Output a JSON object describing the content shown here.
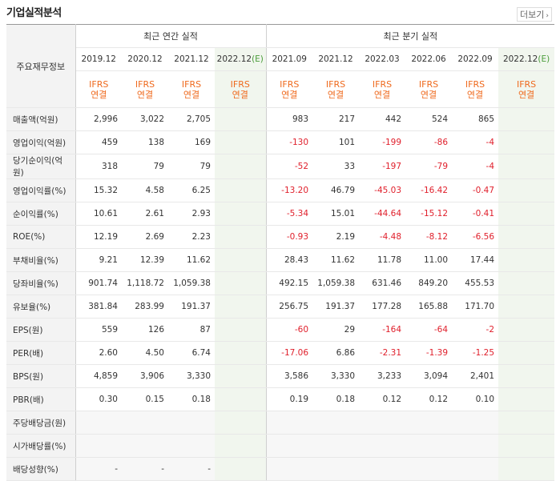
{
  "title": "기업실적분석",
  "more_label": "더보기",
  "header": {
    "row_label": "주요재무정보",
    "annual_group": "최근 연간 실적",
    "quarter_group": "최근 분기 실적",
    "annual_periods": [
      "2019.12",
      "2020.12",
      "2021.12",
      "2022.12(E)"
    ],
    "quarter_periods": [
      "2021.09",
      "2021.12",
      "2022.03",
      "2022.06",
      "2022.09",
      "2022.12(E)"
    ],
    "ifrs_top": "IFRS",
    "ifrs_bottom": "연결"
  },
  "rows": [
    {
      "label": "매출액(억원)",
      "values": [
        "2,996",
        "3,022",
        "2,705",
        "",
        "983",
        "217",
        "442",
        "524",
        "865",
        ""
      ]
    },
    {
      "label": "영업이익(억원)",
      "values": [
        "459",
        "138",
        "169",
        "",
        "-130",
        "101",
        "-199",
        "-86",
        "-4",
        ""
      ]
    },
    {
      "label": "당기순이익(억원)",
      "values": [
        "318",
        "79",
        "79",
        "",
        "-52",
        "33",
        "-197",
        "-79",
        "-4",
        ""
      ]
    },
    {
      "label": "영업이익률(%)",
      "values": [
        "15.32",
        "4.58",
        "6.25",
        "",
        "-13.20",
        "46.79",
        "-45.03",
        "-16.42",
        "-0.47",
        ""
      ]
    },
    {
      "label": "순이익률(%)",
      "values": [
        "10.61",
        "2.61",
        "2.93",
        "",
        "-5.34",
        "15.01",
        "-44.64",
        "-15.12",
        "-0.41",
        ""
      ]
    },
    {
      "label": "ROE(%)",
      "values": [
        "12.19",
        "2.69",
        "2.23",
        "",
        "-0.93",
        "2.19",
        "-4.48",
        "-8.12",
        "-6.56",
        ""
      ]
    },
    {
      "label": "부채비율(%)",
      "values": [
        "9.21",
        "12.39",
        "11.62",
        "",
        "28.43",
        "11.62",
        "11.78",
        "11.00",
        "17.44",
        ""
      ]
    },
    {
      "label": "당좌비율(%)",
      "values": [
        "901.74",
        "1,118.72",
        "1,059.38",
        "",
        "492.15",
        "1,059.38",
        "631.46",
        "849.20",
        "455.53",
        ""
      ]
    },
    {
      "label": "유보율(%)",
      "values": [
        "381.84",
        "283.99",
        "191.37",
        "",
        "256.75",
        "191.37",
        "177.28",
        "165.88",
        "171.70",
        ""
      ]
    },
    {
      "label": "EPS(원)",
      "values": [
        "559",
        "126",
        "87",
        "",
        "-60",
        "29",
        "-164",
        "-64",
        "-2",
        ""
      ]
    },
    {
      "label": "PER(배)",
      "values": [
        "2.60",
        "4.50",
        "6.74",
        "",
        "-17.06",
        "6.86",
        "-2.31",
        "-1.39",
        "-1.25",
        ""
      ]
    },
    {
      "label": "BPS(원)",
      "values": [
        "4,859",
        "3,906",
        "3,330",
        "",
        "3,586",
        "3,330",
        "3,233",
        "3,094",
        "2,401",
        ""
      ]
    },
    {
      "label": "PBR(배)",
      "values": [
        "0.30",
        "0.15",
        "0.18",
        "",
        "0.19",
        "0.18",
        "0.12",
        "0.12",
        "0.10",
        ""
      ]
    },
    {
      "label": "주당배당금(원)",
      "values": [
        "",
        "",
        "",
        "",
        "",
        "",
        "",
        "",
        "",
        ""
      ]
    },
    {
      "label": "시가배당률(%)",
      "values": [
        "",
        "",
        "",
        "",
        "",
        "",
        "",
        "",
        "",
        ""
      ]
    },
    {
      "label": "배당성향(%)",
      "values": [
        "-",
        "-",
        "-",
        "",
        "",
        "",
        "",
        "",
        "",
        ""
      ]
    }
  ]
}
